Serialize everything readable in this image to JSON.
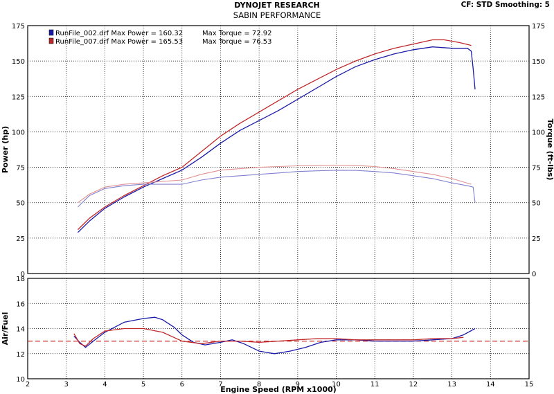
{
  "header": {
    "title": "DYNOJET RESEARCH",
    "subtitle": "SABIN PERFORMANCE",
    "cf_info": "CF: STD  Smoothing: 5"
  },
  "colors": {
    "run1": "#1a1aa8",
    "run2": "#c0282a",
    "run1_torque": "#8080d0",
    "run2_torque": "#e09090",
    "afr_reference": "#cc2222",
    "grid": "#000000"
  },
  "chart_data": [
    {
      "type": "line",
      "name": "power-torque",
      "xlim": [
        2,
        15
      ],
      "ylim": [
        0,
        175
      ],
      "xticks": [
        2,
        3,
        4,
        5,
        6,
        7,
        8,
        9,
        10,
        11,
        12,
        13,
        14,
        15
      ],
      "yticks": [
        0,
        25,
        50,
        75,
        100,
        125,
        150,
        175
      ],
      "ylabel_left": "Power (hp)",
      "ylabel_right": "Torque (ft-lbs)",
      "grid": true,
      "legend_position": "top-left",
      "legend": [
        {
          "label": "RunFile_002.drf Max Power = 160.32",
          "torque_label": "Max Torque = 72.92",
          "color": "#1a1aa8"
        },
        {
          "label": "RunFile_007.drf Max Power = 165.53",
          "torque_label": "Max Torque = 76.53",
          "color": "#c0282a"
        }
      ],
      "series": [
        {
          "role": "power",
          "run": 1,
          "color": "#1a1aa8",
          "x": [
            3.3,
            3.6,
            4.0,
            4.5,
            5.0,
            5.5,
            6.0,
            6.5,
            7.0,
            7.5,
            8.0,
            8.5,
            9.0,
            9.5,
            10.0,
            10.5,
            11.0,
            11.5,
            12.0,
            12.5,
            13.0,
            13.4,
            13.5,
            13.55,
            13.6
          ],
          "y": [
            29,
            37,
            46,
            54,
            61,
            67,
            73,
            82,
            92,
            101,
            108,
            115,
            123,
            131,
            139,
            146,
            151,
            155,
            158,
            160,
            159,
            159,
            157,
            145,
            130
          ]
        },
        {
          "role": "power",
          "run": 2,
          "color": "#c0282a",
          "x": [
            3.3,
            3.6,
            4.0,
            4.5,
            5.0,
            5.5,
            6.0,
            6.5,
            7.0,
            7.5,
            8.0,
            8.5,
            9.0,
            9.5,
            10.0,
            10.5,
            11.0,
            11.5,
            12.0,
            12.5,
            12.8,
            13.2,
            13.5
          ],
          "y": [
            31,
            39,
            47,
            55,
            62,
            69,
            75,
            86,
            97,
            106,
            114,
            122,
            130,
            137,
            144,
            150,
            155,
            159,
            162,
            165,
            165,
            163,
            161
          ]
        },
        {
          "role": "torque",
          "run": 1,
          "color": "#8080d0",
          "x": [
            3.3,
            3.6,
            4.0,
            4.5,
            5.0,
            5.5,
            6.0,
            6.5,
            7.0,
            7.5,
            8.0,
            8.5,
            9.0,
            9.5,
            10.0,
            10.5,
            11.0,
            11.5,
            12.0,
            12.5,
            13.0,
            13.4,
            13.55,
            13.6
          ],
          "y": [
            47,
            55,
            60,
            62,
            63,
            63,
            63,
            66,
            68,
            69,
            70,
            71,
            72,
            72.5,
            72.9,
            72.8,
            72,
            71,
            69,
            67,
            64,
            62,
            61,
            50
          ]
        },
        {
          "role": "torque",
          "run": 2,
          "color": "#e09090",
          "x": [
            3.3,
            3.6,
            4.0,
            4.5,
            5.0,
            5.5,
            6.0,
            6.5,
            7.0,
            7.5,
            8.0,
            8.5,
            9.0,
            9.5,
            10.0,
            10.5,
            11.0,
            11.5,
            12.0,
            12.5,
            13.0,
            13.5
          ],
          "y": [
            50,
            56,
            61,
            63,
            64,
            65,
            66,
            70,
            73,
            74,
            75,
            75.5,
            76,
            76.3,
            76.5,
            76.3,
            75.5,
            74,
            72,
            70,
            67,
            63
          ]
        }
      ]
    },
    {
      "type": "line",
      "name": "air-fuel",
      "xlim": [
        2,
        15
      ],
      "ylim": [
        10,
        18
      ],
      "xticks": [
        2,
        3,
        4,
        5,
        6,
        7,
        8,
        9,
        10,
        11,
        12,
        13,
        14,
        15
      ],
      "yticks": [
        10,
        12,
        14,
        16,
        18
      ],
      "ylabel": "Air/Fuel",
      "xlabel": "Engine Speed (RPM x1000)",
      "grid": true,
      "reference_line": {
        "y": 13,
        "color": "#cc2222",
        "style": "dashed"
      },
      "series": [
        {
          "run": 1,
          "color": "#1a1aa8",
          "x": [
            3.2,
            3.35,
            3.5,
            3.7,
            4.0,
            4.5,
            5.0,
            5.3,
            5.5,
            5.8,
            6.0,
            6.3,
            6.6,
            7.0,
            7.3,
            7.6,
            8.0,
            8.4,
            8.8,
            9.2,
            9.6,
            10.0,
            10.5,
            11.0,
            11.5,
            12.0,
            12.5,
            13.0,
            13.3,
            13.6
          ],
          "y": [
            13.4,
            12.9,
            12.5,
            13.0,
            13.7,
            14.5,
            14.8,
            14.9,
            14.7,
            14.1,
            13.5,
            12.9,
            12.7,
            12.9,
            13.1,
            12.8,
            12.2,
            12.0,
            12.2,
            12.5,
            12.9,
            13.1,
            13.1,
            13.0,
            13.0,
            13.0,
            13.1,
            13.2,
            13.5,
            14.0
          ]
        },
        {
          "run": 2,
          "color": "#c0282a",
          "x": [
            3.2,
            3.35,
            3.5,
            3.7,
            4.0,
            4.5,
            5.0,
            5.5,
            6.0,
            6.5,
            7.0,
            7.5,
            8.0,
            8.5,
            9.0,
            9.5,
            10.0,
            10.5,
            11.0,
            11.5,
            12.0,
            12.5,
            13.0,
            13.3
          ],
          "y": [
            13.6,
            12.8,
            12.6,
            13.2,
            13.8,
            14.0,
            14.0,
            13.7,
            13.0,
            12.8,
            13.0,
            13.0,
            12.9,
            13.0,
            13.1,
            13.2,
            13.2,
            13.1,
            13.1,
            13.1,
            13.1,
            13.2,
            13.2,
            13.3
          ]
        }
      ]
    }
  ]
}
